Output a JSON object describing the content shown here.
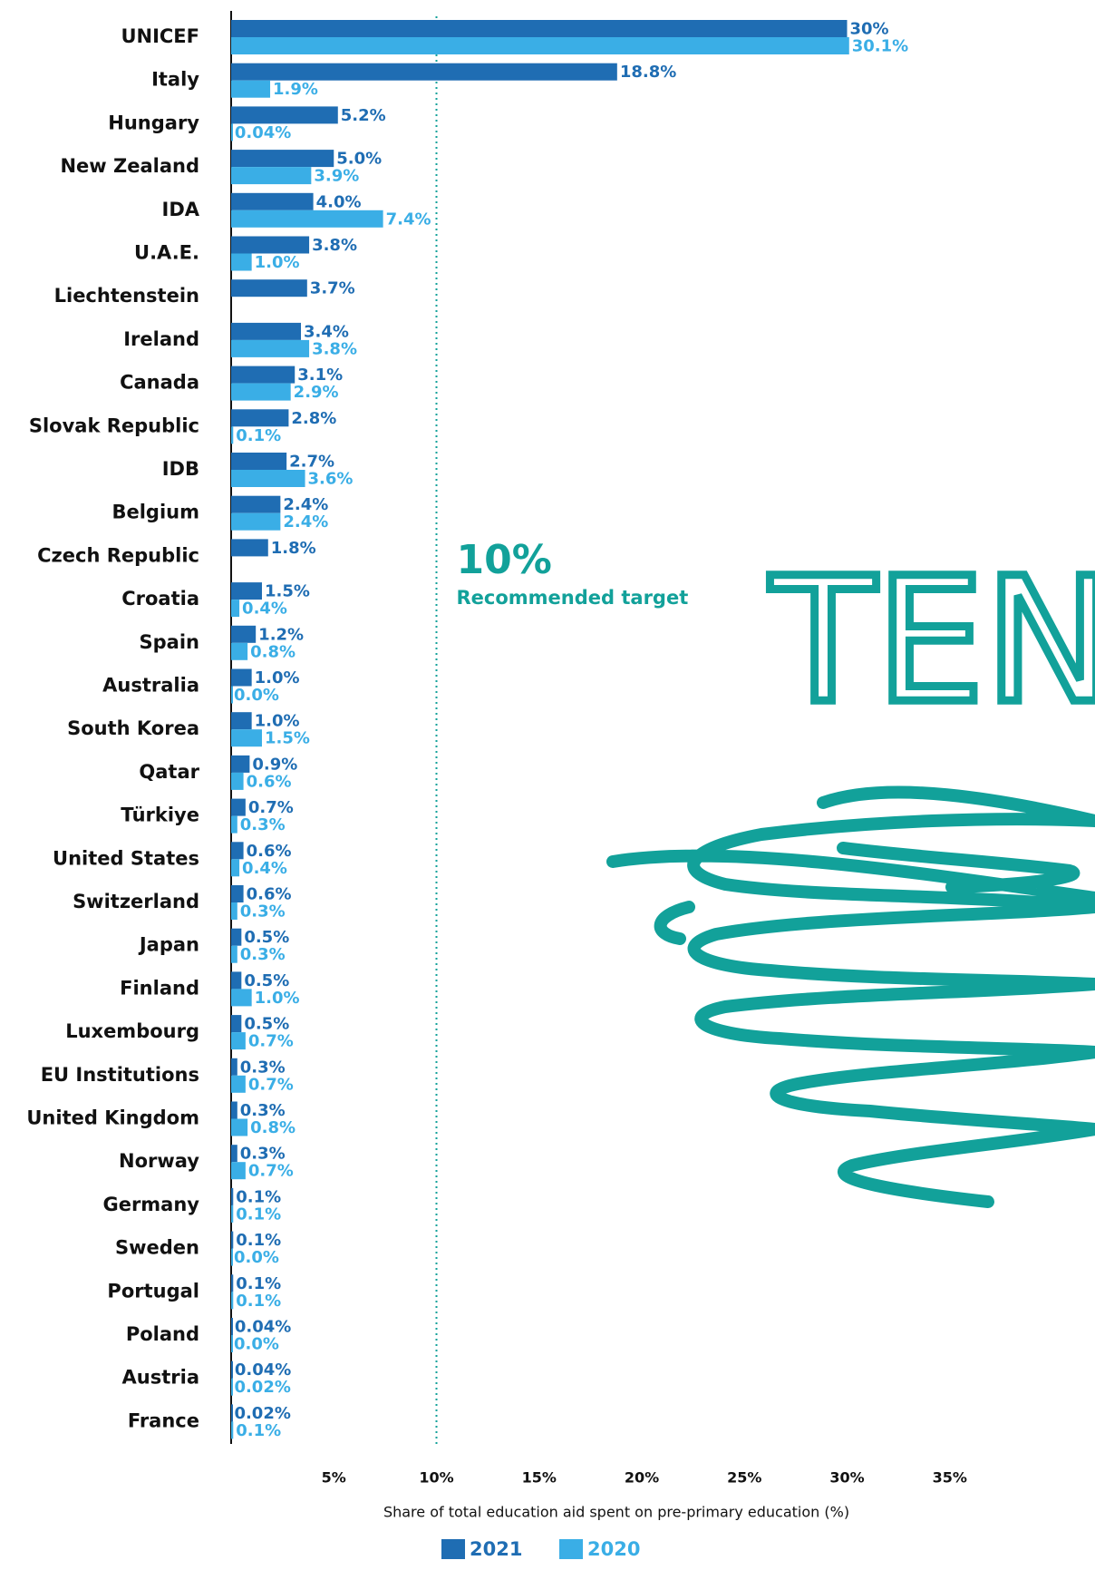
{
  "chart_data": {
    "type": "bar",
    "orientation": "horizontal",
    "categories": [
      "UNICEF",
      "Italy",
      "Hungary",
      "New Zealand",
      "IDA",
      "U.A.E.",
      "Liechtenstein",
      "Ireland",
      "Canada",
      "Slovak Republic",
      "IDB",
      "Belgium",
      "Czech Republic",
      "Croatia",
      "Spain",
      "Australia",
      "South Korea",
      "Qatar",
      "Türkiye",
      "United States",
      "Switzerland",
      "Japan",
      "Finland",
      "Luxembourg",
      "EU Institutions",
      "United Kingdom",
      "Norway",
      "Germany",
      "Sweden",
      "Portugal",
      "Poland",
      "Austria",
      "France"
    ],
    "series": [
      {
        "name": "2021",
        "color": "#1f6db3",
        "values": [
          30,
          18.8,
          5.2,
          5.0,
          4.0,
          3.8,
          3.7,
          3.4,
          3.1,
          2.8,
          2.7,
          2.4,
          1.8,
          1.5,
          1.2,
          1.0,
          1.0,
          0.9,
          0.7,
          0.6,
          0.6,
          0.5,
          0.5,
          0.5,
          0.3,
          0.3,
          0.3,
          0.1,
          0.1,
          0.1,
          0.04,
          0.04,
          0.02
        ],
        "value_labels": [
          "30%",
          "18.8%",
          "5.2%",
          "5.0%",
          "4.0%",
          "3.8%",
          "3.7%",
          "3.4%",
          "3.1%",
          "2.8%",
          "2.7%",
          "2.4%",
          "1.8%",
          "1.5%",
          "1.2%",
          "1.0%",
          "1.0%",
          "0.9%",
          "0.7%",
          "0.6%",
          "0.6%",
          "0.5%",
          "0.5%",
          "0.5%",
          "0.3%",
          "0.3%",
          "0.3%",
          "0.1%",
          "0.1%",
          "0.1%",
          "0.04%",
          "0.04%",
          "0.02%"
        ]
      },
      {
        "name": "2020",
        "color": "#3aaee6",
        "values": [
          30.1,
          1.9,
          0.04,
          3.9,
          7.4,
          1.0,
          null,
          3.8,
          2.9,
          0.1,
          3.6,
          2.4,
          null,
          0.4,
          0.8,
          0.0,
          1.5,
          0.6,
          0.3,
          0.4,
          0.3,
          0.3,
          1.0,
          0.7,
          0.7,
          0.8,
          0.7,
          0.1,
          0.0,
          0.1,
          0.0,
          0.02,
          0.1
        ],
        "value_labels": [
          "30.1%",
          "1.9%",
          "0.04%",
          "3.9%",
          "7.4%",
          "1.0%",
          null,
          "3.8%",
          "2.9%",
          "0.1%",
          "3.6%",
          "2.4%",
          null,
          "0.4%",
          "0.8%",
          "0.0%",
          "1.5%",
          "0.6%",
          "0.3%",
          "0.4%",
          "0.3%",
          "0.3%",
          "1.0%",
          "0.7%",
          "0.7%",
          "0.8%",
          "0.7%",
          "0.1%",
          "0.0%",
          "0.1%",
          "0.0%",
          "0.02%",
          "0.1%"
        ]
      }
    ],
    "xlim": [
      0,
      40
    ],
    "xticks": [
      {
        "value": 5,
        "label": "5%"
      },
      {
        "value": 10,
        "label": "10%"
      },
      {
        "value": 15,
        "label": "15%"
      },
      {
        "value": 20,
        "label": "20%"
      },
      {
        "value": 25,
        "label": "25%"
      },
      {
        "value": 30,
        "label": "30%"
      },
      {
        "value": 35,
        "label": "35%"
      }
    ],
    "x_label": "Share of total education aid spent on pre-primary education (%)",
    "target_value": 10,
    "target_label": "10%",
    "target_note": "Recommended target",
    "target_color": "#12a19a",
    "handwriting": "TEN",
    "legend": "bottom"
  }
}
